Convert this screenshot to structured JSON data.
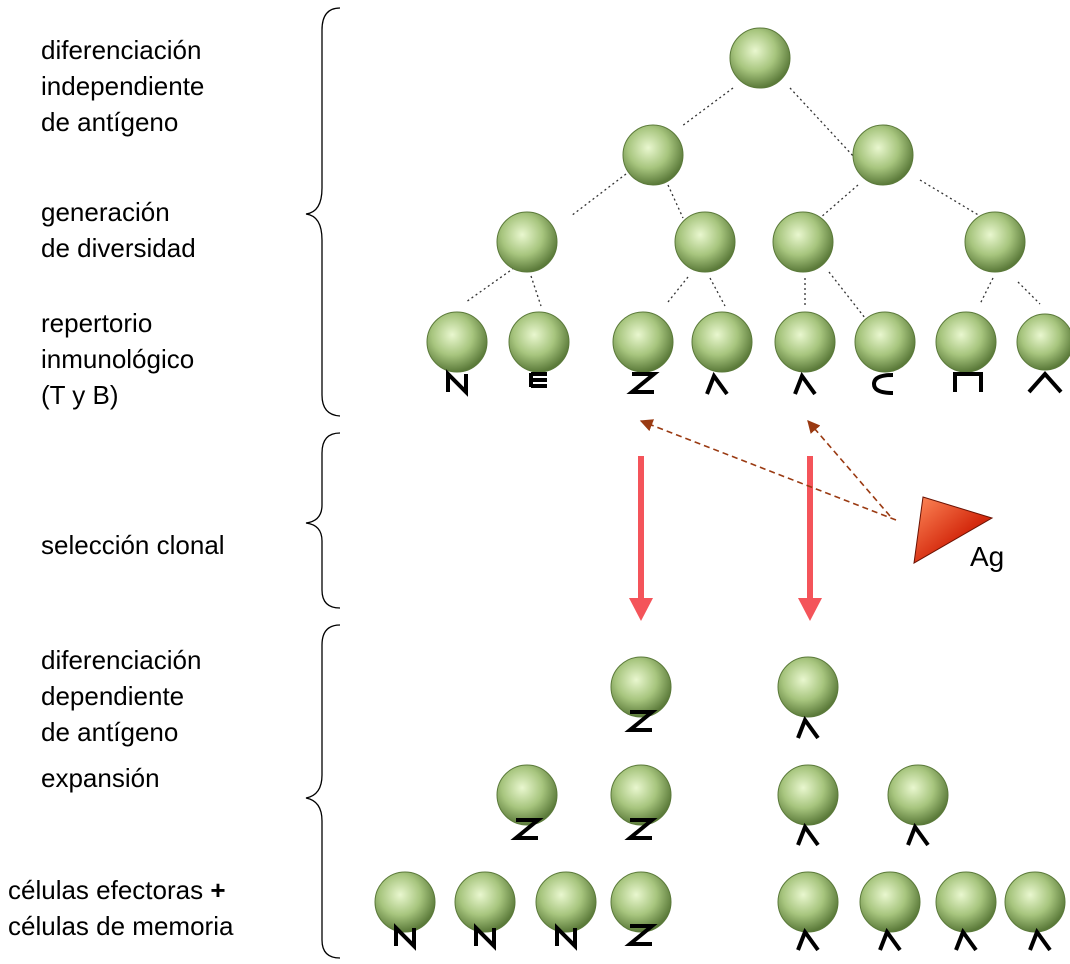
{
  "labels": {
    "independent": [
      "diferenciación",
      "independiente",
      "de antígeno"
    ],
    "diversity": [
      "generación",
      "de diversidad"
    ],
    "repertoire": [
      "repertorio",
      "inmunológico",
      "(T y B)"
    ],
    "selection": [
      "selección clonal"
    ],
    "dependent": [
      "diferenciación",
      "dependiente",
      "de antígeno"
    ],
    "expansion": [
      "expansión"
    ],
    "effectors": {
      "line1": "células efectoras",
      "plus": "+",
      "line2": "células de memoria"
    }
  },
  "antigen_label": "Ag",
  "colors": {
    "cell_center": "#e9f7cf",
    "cell_mid": "#a7c57e",
    "cell_edge": "#5b7a3a",
    "tree_line": "#333333",
    "selection_arrow": "#f4545a",
    "antigen_arrow": "#9a3a12",
    "antigen_fill": "#d42a0e",
    "antigen_light": "#ff8a5a"
  },
  "icons": {
    "cell": "green-sphere",
    "antigen": "red-triangle",
    "receptors": [
      "receptor-N",
      "receptor-E",
      "receptor-Z",
      "receptor-lambda",
      "receptor-C",
      "receptor-pi",
      "receptor-wedge"
    ]
  }
}
